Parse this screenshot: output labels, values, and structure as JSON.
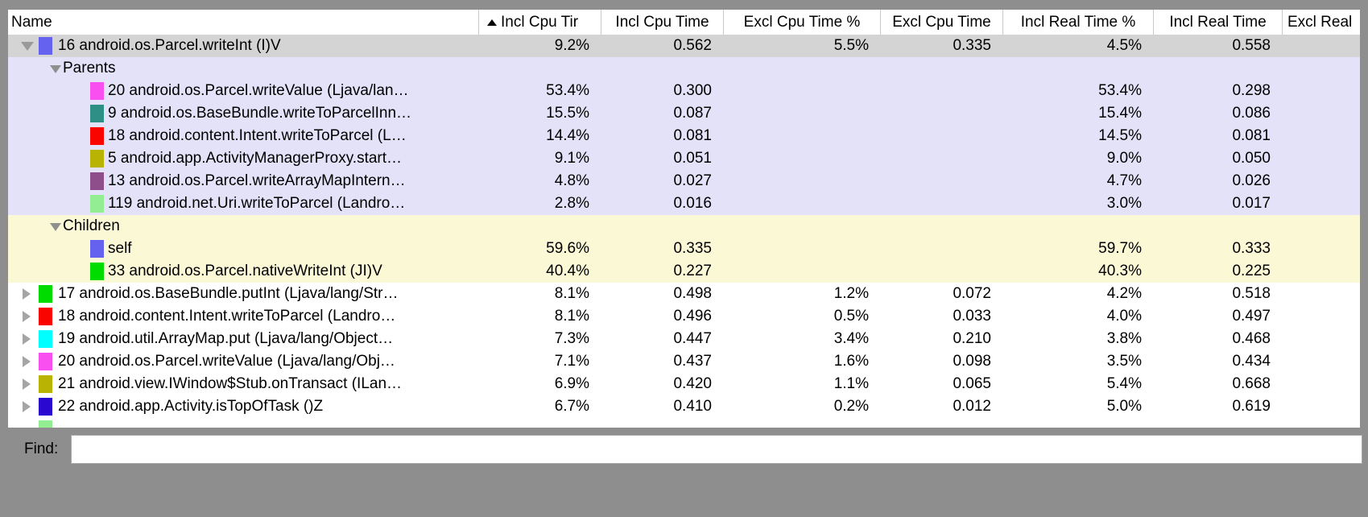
{
  "find": {
    "label": "Find:",
    "value": ""
  },
  "colors": {
    "frame_bg": "#8e8e8e",
    "selected_row_bg": "#d4d4d4",
    "parents_section_bg": "#e3e2f8",
    "children_section_bg": "#fbf8d6",
    "row_bg": "#ffffff"
  },
  "table": {
    "sort": {
      "column": "Incl Cpu Tir",
      "direction": "ascending"
    },
    "columns": [
      {
        "id": "name",
        "label": "Name"
      },
      {
        "id": "incl-cpu-time-pct",
        "label": "Incl Cpu Tir",
        "sorted": true
      },
      {
        "id": "incl-cpu-time",
        "label": "Incl Cpu Time"
      },
      {
        "id": "excl-cpu-time-pct",
        "label": "Excl Cpu Time %"
      },
      {
        "id": "excl-cpu-time",
        "label": "Excl Cpu Time"
      },
      {
        "id": "incl-real-time-pct",
        "label": "Incl Real Time %"
      },
      {
        "id": "incl-real-time",
        "label": "Incl Real Time"
      },
      {
        "id": "excl-real",
        "label": "Excl Real"
      }
    ],
    "rows": [
      {
        "kind": "method",
        "expander": "expanded",
        "swatch": "#6662f0",
        "name": "16 android.os.Parcel.writeInt (I)V",
        "bg": "selected",
        "values": [
          "9.2%",
          "0.562",
          "5.5%",
          "0.335",
          "4.5%",
          "0.558",
          ""
        ]
      },
      {
        "kind": "section",
        "expander": "expanded",
        "name": "Parents",
        "bg": "parents",
        "values": [
          "",
          "",
          "",
          "",
          "",
          "",
          ""
        ]
      },
      {
        "kind": "child",
        "swatch": "#fa4ff0",
        "name": "20 android.os.Parcel.writeValue (Ljava/lan…",
        "bg": "parents",
        "values": [
          "53.4%",
          "0.300",
          "",
          "",
          "53.4%",
          "0.298",
          ""
        ]
      },
      {
        "kind": "child",
        "swatch": "#2d8f85",
        "name": "9 android.os.BaseBundle.writeToParcelInn…",
        "bg": "parents",
        "values": [
          "15.5%",
          "0.087",
          "",
          "",
          "15.4%",
          "0.086",
          ""
        ]
      },
      {
        "kind": "child",
        "swatch": "#fa0400",
        "name": "18 android.content.Intent.writeToParcel (L…",
        "bg": "parents",
        "values": [
          "14.4%",
          "0.081",
          "",
          "",
          "14.5%",
          "0.081",
          ""
        ]
      },
      {
        "kind": "child",
        "swatch": "#b9b404",
        "name": "5 android.app.ActivityManagerProxy.start…",
        "bg": "parents",
        "values": [
          "9.1%",
          "0.051",
          "",
          "",
          "9.0%",
          "0.050",
          ""
        ]
      },
      {
        "kind": "child",
        "swatch": "#8d4e8b",
        "name": "13 android.os.Parcel.writeArrayMapIntern…",
        "bg": "parents",
        "values": [
          "4.8%",
          "0.027",
          "",
          "",
          "4.7%",
          "0.026",
          ""
        ]
      },
      {
        "kind": "child",
        "swatch": "#93ee93",
        "name": "119 android.net.Uri.writeToParcel (Landro…",
        "bg": "parents",
        "values": [
          "2.8%",
          "0.016",
          "",
          "",
          "3.0%",
          "0.017",
          ""
        ]
      },
      {
        "kind": "section",
        "expander": "expanded",
        "name": "Children",
        "bg": "children",
        "values": [
          "",
          "",
          "",
          "",
          "",
          "",
          ""
        ]
      },
      {
        "kind": "child",
        "swatch": "#6662f0",
        "name": "self",
        "bg": "children",
        "values": [
          "59.6%",
          "0.335",
          "",
          "",
          "59.7%",
          "0.333",
          ""
        ]
      },
      {
        "kind": "child",
        "swatch": "#00dc00",
        "name": "33 android.os.Parcel.nativeWriteInt (JI)V",
        "bg": "children",
        "values": [
          "40.4%",
          "0.227",
          "",
          "",
          "40.3%",
          "0.225",
          ""
        ]
      },
      {
        "kind": "method",
        "expander": "collapsed",
        "swatch": "#00dc00",
        "name": "17 android.os.BaseBundle.putInt (Ljava/lang/Str…",
        "bg": "white",
        "values": [
          "8.1%",
          "0.498",
          "1.2%",
          "0.072",
          "4.2%",
          "0.518",
          ""
        ]
      },
      {
        "kind": "method",
        "expander": "collapsed",
        "swatch": "#fa0400",
        "name": "18 android.content.Intent.writeToParcel (Landro…",
        "bg": "white",
        "values": [
          "8.1%",
          "0.496",
          "0.5%",
          "0.033",
          "4.0%",
          "0.497",
          ""
        ]
      },
      {
        "kind": "method",
        "expander": "collapsed",
        "swatch": "#00ffff",
        "name": "19 android.util.ArrayMap.put (Ljava/lang/Object…",
        "bg": "white",
        "values": [
          "7.3%",
          "0.447",
          "3.4%",
          "0.210",
          "3.8%",
          "0.468",
          ""
        ]
      },
      {
        "kind": "method",
        "expander": "collapsed",
        "swatch": "#fa4ff0",
        "name": "20 android.os.Parcel.writeValue (Ljava/lang/Obj…",
        "bg": "white",
        "values": [
          "7.1%",
          "0.437",
          "1.6%",
          "0.098",
          "3.5%",
          "0.434",
          ""
        ]
      },
      {
        "kind": "method",
        "expander": "collapsed",
        "swatch": "#b9b404",
        "name": "21 android.view.IWindow$Stub.onTransact (ILan…",
        "bg": "white",
        "values": [
          "6.9%",
          "0.420",
          "1.1%",
          "0.065",
          "5.4%",
          "0.668",
          ""
        ]
      },
      {
        "kind": "method",
        "expander": "collapsed",
        "swatch": "#2b08d0",
        "name": "22 android.app.Activity.isTopOfTask ()Z",
        "bg": "white",
        "values": [
          "6.7%",
          "0.410",
          "0.2%",
          "0.012",
          "5.0%",
          "0.619",
          ""
        ]
      },
      {
        "kind": "partial",
        "swatch": "#93ee93",
        "name": null,
        "bg": "white",
        "values": [
          "",
          "",
          "",
          "",
          "",
          "",
          ""
        ]
      }
    ]
  }
}
